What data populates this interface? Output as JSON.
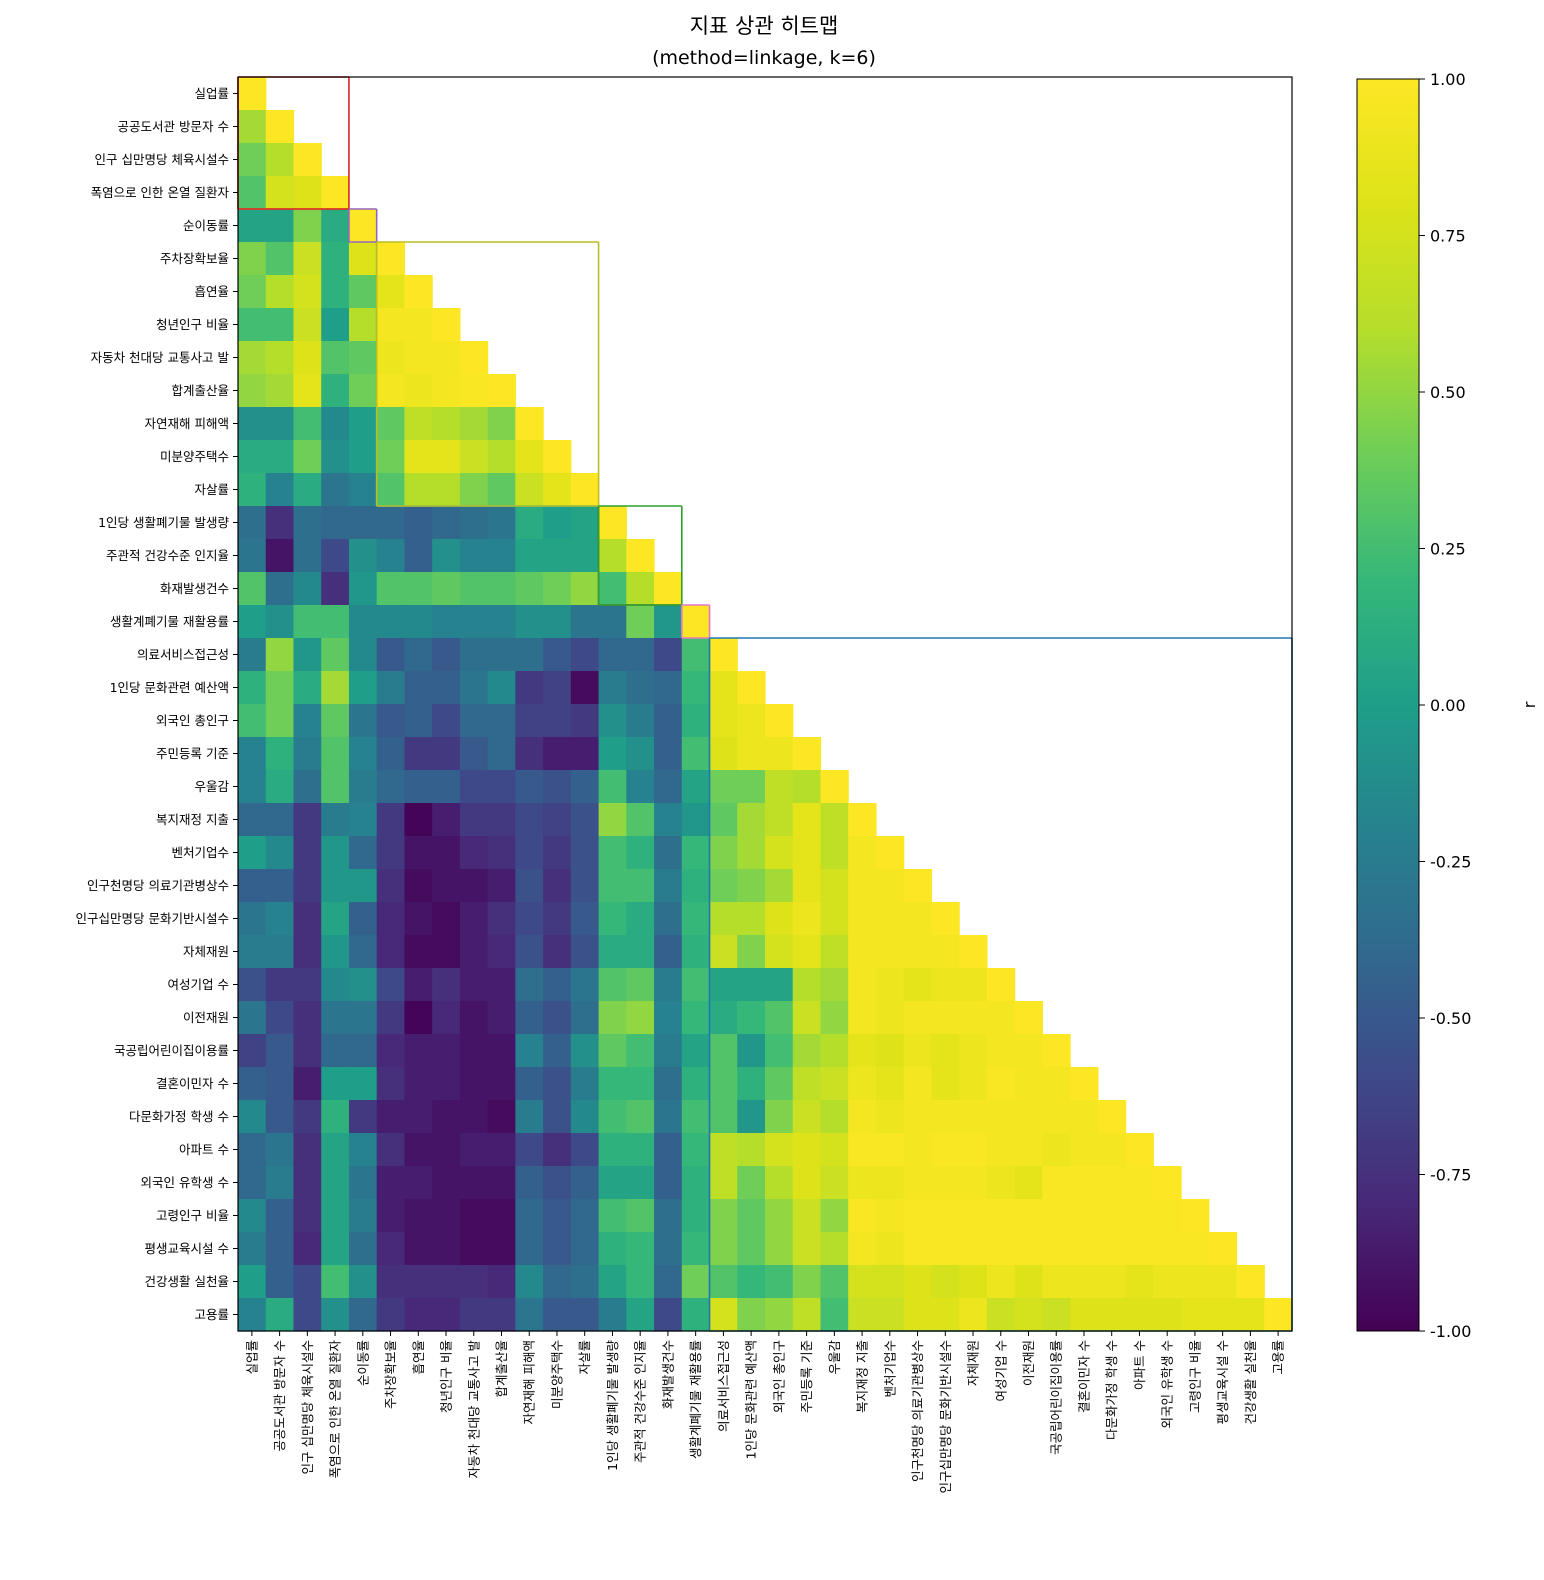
{
  "chart_data": {
    "type": "heatmap",
    "title": "지표 상관 히트맵",
    "subtitle": "(method=linkage, k=6)",
    "colormap": "viridis",
    "vmin": -1.0,
    "vmax": 1.0,
    "mask": "lower-triangle-with-diagonal",
    "labels": [
      "실업률",
      "공공도서관 방문자 수",
      "인구 십만명당 체육시설수",
      "폭염으로 인한 온열 질환자",
      "순이동률",
      "주차장확보율",
      "흡연율",
      "청년인구 비율",
      "자동차 천대당 교통사고 발",
      "합계출산율",
      "자연재해 피해액",
      "미분양주택수",
      "자살률",
      "1인당 생활폐기물 발생량",
      "주관적 건강수준 인지율",
      "화재발생건수",
      "생활계폐기물 재활용률",
      "의료서비스접근성",
      "1인당 문화관련 예산액",
      "외국인 총인구",
      "주민등록 기준",
      "우울감",
      "복지재정 지출",
      "벤처기업수",
      "인구천명당 의료기관병상수",
      "인구십만명당 문화기반시설수",
      "자체재원",
      "여성기업 수",
      "이전재원",
      "국공립어린이집이용률",
      "결혼이민자 수",
      "다문화가정 학생 수",
      "아파트 수",
      "외국인 유학생 수",
      "고령인구 비율",
      "평생교육시설 수",
      "건강생활 실천율",
      "고용률"
    ],
    "clusters": [
      {
        "start": 0,
        "end": 3,
        "color": "#d62728"
      },
      {
        "start": 4,
        "end": 4,
        "color": "#9467bd"
      },
      {
        "start": 5,
        "end": 12,
        "color": "#bcbd22"
      },
      {
        "start": 13,
        "end": 15,
        "color": "#2ca02c"
      },
      {
        "start": 16,
        "end": 16,
        "color": "#e377c2"
      },
      {
        "start": 17,
        "end": 37,
        "color": "#1f77b4"
      }
    ],
    "group_blocks": [
      {
        "start": 0,
        "end": 3,
        "color": "#ff7f0e"
      },
      {
        "start": 5,
        "end": 12,
        "color": "#17becf"
      },
      {
        "start": 13,
        "end": 15,
        "color": "#8c564b"
      }
    ],
    "values_rows": [
      [
        1.0
      ],
      [
        0.55,
        1.0
      ],
      [
        0.4,
        0.6,
        1.0
      ],
      [
        0.3,
        0.75,
        0.8,
        1.0
      ],
      [
        0.05,
        0.05,
        0.45,
        0.1,
        1.0
      ],
      [
        0.45,
        0.3,
        0.7,
        0.15,
        0.8,
        1.0
      ],
      [
        0.4,
        0.6,
        0.75,
        0.15,
        0.35,
        0.85,
        1.0
      ],
      [
        0.25,
        0.25,
        0.7,
        0.0,
        0.6,
        0.95,
        0.95,
        1.0
      ],
      [
        0.55,
        0.6,
        0.8,
        0.3,
        0.35,
        0.9,
        0.95,
        0.95,
        1.0
      ],
      [
        0.5,
        0.55,
        0.85,
        0.15,
        0.4,
        0.95,
        0.9,
        0.95,
        0.98,
        1.0
      ],
      [
        -0.1,
        -0.1,
        0.25,
        -0.15,
        0.0,
        0.35,
        0.65,
        0.6,
        0.55,
        0.45,
        1.0
      ],
      [
        0.1,
        0.1,
        0.4,
        -0.1,
        0.0,
        0.4,
        0.85,
        0.85,
        0.7,
        0.6,
        0.85,
        1.0
      ],
      [
        0.15,
        -0.2,
        0.1,
        -0.3,
        -0.2,
        0.3,
        0.6,
        0.6,
        0.45,
        0.35,
        0.7,
        0.85,
        1.0
      ],
      [
        -0.35,
        -0.75,
        -0.35,
        -0.4,
        -0.4,
        -0.4,
        -0.45,
        -0.4,
        -0.35,
        -0.3,
        0.1,
        0.0,
        0.05,
        1.0
      ],
      [
        -0.3,
        -0.9,
        -0.35,
        -0.6,
        -0.1,
        -0.2,
        -0.45,
        -0.1,
        -0.2,
        -0.2,
        0.05,
        0.05,
        0.05,
        0.6,
        1.0
      ],
      [
        0.3,
        -0.35,
        -0.15,
        -0.75,
        -0.05,
        0.3,
        0.3,
        0.35,
        0.3,
        0.3,
        0.35,
        0.4,
        0.5,
        0.25,
        0.6,
        1.0
      ],
      [
        0.0,
        -0.1,
        0.25,
        0.25,
        -0.15,
        -0.15,
        -0.15,
        -0.2,
        -0.2,
        -0.2,
        -0.1,
        -0.1,
        -0.3,
        -0.3,
        0.4,
        -0.05,
        1.0
      ],
      [
        -0.25,
        0.5,
        -0.05,
        0.35,
        -0.15,
        -0.5,
        -0.4,
        -0.5,
        -0.35,
        -0.35,
        -0.35,
        -0.5,
        -0.6,
        -0.4,
        -0.4,
        -0.6,
        0.25,
        1.0
      ],
      [
        0.15,
        0.4,
        0.1,
        0.55,
        0.0,
        -0.25,
        -0.45,
        -0.45,
        -0.3,
        -0.15,
        -0.7,
        -0.65,
        -0.95,
        -0.25,
        -0.35,
        -0.4,
        0.2,
        0.85,
        1.0
      ],
      [
        0.25,
        0.4,
        -0.2,
        0.35,
        -0.3,
        -0.5,
        -0.45,
        -0.6,
        -0.4,
        -0.4,
        -0.65,
        -0.65,
        -0.7,
        -0.1,
        -0.25,
        -0.45,
        0.15,
        0.85,
        0.9,
        1.0
      ],
      [
        -0.2,
        0.15,
        -0.25,
        0.3,
        -0.2,
        -0.45,
        -0.7,
        -0.7,
        -0.5,
        -0.4,
        -0.75,
        -0.85,
        -0.85,
        -0.0,
        -0.1,
        -0.45,
        0.25,
        0.8,
        0.9,
        0.9,
        1.0
      ],
      [
        -0.2,
        0.1,
        -0.35,
        0.3,
        -0.25,
        -0.4,
        -0.45,
        -0.45,
        -0.6,
        -0.6,
        -0.5,
        -0.55,
        -0.45,
        0.25,
        -0.2,
        -0.4,
        0.05,
        0.4,
        0.4,
        0.65,
        0.6,
        1.0
      ],
      [
        -0.4,
        -0.4,
        -0.7,
        -0.25,
        -0.2,
        -0.7,
        -0.98,
        -0.85,
        -0.7,
        -0.7,
        -0.6,
        -0.65,
        -0.55,
        0.5,
        0.3,
        -0.2,
        -0.05,
        0.35,
        0.55,
        0.65,
        0.85,
        0.65,
        1.0
      ],
      [
        0.0,
        -0.15,
        -0.7,
        -0.05,
        -0.4,
        -0.7,
        -0.9,
        -0.9,
        -0.8,
        -0.75,
        -0.6,
        -0.7,
        -0.55,
        0.25,
        0.15,
        -0.35,
        0.2,
        0.45,
        0.55,
        0.75,
        0.85,
        0.65,
        0.95,
        1.0
      ],
      [
        -0.45,
        -0.45,
        -0.7,
        -0.05,
        -0.05,
        -0.75,
        -0.95,
        -0.9,
        -0.9,
        -0.85,
        -0.55,
        -0.75,
        -0.55,
        0.25,
        0.25,
        -0.25,
        0.15,
        0.4,
        0.45,
        0.55,
        0.85,
        0.75,
        0.95,
        0.95,
        1.0
      ],
      [
        -0.3,
        -0.2,
        -0.75,
        0.05,
        -0.45,
        -0.8,
        -0.9,
        -0.95,
        -0.85,
        -0.75,
        -0.6,
        -0.7,
        -0.5,
        0.2,
        0.1,
        -0.35,
        0.2,
        0.6,
        0.6,
        0.8,
        0.9,
        0.75,
        0.95,
        0.95,
        0.95,
        1.0
      ],
      [
        -0.25,
        -0.25,
        -0.75,
        -0.05,
        -0.4,
        -0.8,
        -0.95,
        -0.95,
        -0.85,
        -0.8,
        -0.55,
        -0.75,
        -0.55,
        0.1,
        0.1,
        -0.45,
        0.15,
        0.7,
        0.45,
        0.75,
        0.85,
        0.65,
        0.95,
        0.95,
        0.95,
        0.95,
        1.0
      ],
      [
        -0.55,
        -0.7,
        -0.7,
        -0.15,
        -0.1,
        -0.6,
        -0.85,
        -0.75,
        -0.85,
        -0.85,
        -0.35,
        -0.45,
        -0.3,
        0.3,
        0.35,
        -0.25,
        0.25,
        0.05,
        0.05,
        0.05,
        0.6,
        0.55,
        0.95,
        0.9,
        0.85,
        0.9,
        0.9,
        1.0
      ],
      [
        -0.3,
        -0.6,
        -0.75,
        -0.3,
        -0.3,
        -0.7,
        -0.98,
        -0.8,
        -0.9,
        -0.85,
        -0.45,
        -0.55,
        -0.35,
        0.45,
        0.5,
        -0.2,
        0.2,
        0.1,
        0.2,
        0.3,
        0.7,
        0.5,
        0.95,
        0.9,
        0.95,
        0.95,
        0.95,
        0.95,
        1.0
      ],
      [
        -0.65,
        -0.5,
        -0.75,
        -0.4,
        -0.4,
        -0.8,
        -0.85,
        -0.85,
        -0.9,
        -0.9,
        -0.2,
        -0.45,
        -0.1,
        0.35,
        0.25,
        -0.25,
        0.05,
        0.3,
        -0.05,
        0.25,
        0.55,
        0.6,
        0.85,
        0.8,
        0.9,
        0.85,
        0.9,
        0.95,
        0.95,
        1.0
      ],
      [
        -0.45,
        -0.5,
        -0.85,
        0.0,
        0.0,
        -0.75,
        -0.85,
        -0.85,
        -0.9,
        -0.9,
        -0.45,
        -0.55,
        -0.25,
        0.2,
        0.2,
        -0.35,
        0.15,
        0.3,
        0.15,
        0.35,
        0.65,
        0.7,
        0.9,
        0.85,
        0.95,
        0.85,
        0.9,
        0.98,
        0.95,
        0.95,
        1.0
      ],
      [
        -0.15,
        -0.5,
        -0.7,
        0.15,
        -0.7,
        -0.85,
        -0.85,
        -0.9,
        -0.9,
        -0.95,
        -0.25,
        -0.55,
        -0.15,
        0.25,
        0.3,
        -0.3,
        0.25,
        0.3,
        -0.05,
        0.45,
        0.7,
        0.6,
        0.95,
        0.9,
        0.95,
        0.95,
        0.95,
        0.95,
        0.95,
        0.95,
        0.95,
        1.0
      ],
      [
        -0.4,
        -0.3,
        -0.75,
        0.05,
        -0.2,
        -0.75,
        -0.9,
        -0.9,
        -0.85,
        -0.85,
        -0.6,
        -0.75,
        -0.6,
        0.15,
        0.15,
        -0.45,
        0.2,
        0.65,
        0.6,
        0.75,
        0.8,
        0.75,
        0.98,
        0.98,
        0.95,
        0.98,
        0.98,
        0.95,
        0.95,
        0.9,
        0.95,
        0.95,
        1.0
      ],
      [
        -0.4,
        -0.25,
        -0.75,
        0.05,
        -0.3,
        -0.85,
        -0.85,
        -0.9,
        -0.9,
        -0.9,
        -0.45,
        -0.55,
        -0.45,
        0.05,
        0.05,
        -0.45,
        0.15,
        0.65,
        0.4,
        0.6,
        0.8,
        0.7,
        0.9,
        0.9,
        0.95,
        0.95,
        0.95,
        0.9,
        0.85,
        0.98,
        0.98,
        0.98,
        0.98,
        1.0
      ],
      [
        -0.15,
        -0.45,
        -0.75,
        0.05,
        -0.25,
        -0.85,
        -0.9,
        -0.9,
        -0.95,
        -0.95,
        -0.4,
        -0.5,
        -0.4,
        0.25,
        0.3,
        -0.35,
        0.15,
        0.45,
        0.35,
        0.5,
        0.7,
        0.5,
        0.98,
        0.95,
        0.98,
        0.98,
        0.98,
        0.98,
        0.98,
        0.98,
        0.98,
        0.98,
        0.98,
        0.98,
        1.0
      ],
      [
        -0.25,
        -0.45,
        -0.8,
        0.05,
        -0.35,
        -0.8,
        -0.9,
        -0.9,
        -0.95,
        -0.95,
        -0.4,
        -0.5,
        -0.4,
        0.15,
        0.2,
        -0.35,
        0.2,
        0.45,
        0.35,
        0.5,
        0.7,
        0.6,
        0.95,
        0.9,
        0.98,
        0.98,
        0.98,
        0.98,
        0.98,
        0.98,
        0.98,
        0.98,
        0.98,
        0.98,
        0.98,
        1.0
      ],
      [
        0.0,
        -0.45,
        -0.6,
        0.25,
        -0.1,
        -0.75,
        -0.75,
        -0.75,
        -0.75,
        -0.8,
        -0.15,
        -0.4,
        -0.35,
        0.05,
        0.2,
        -0.4,
        0.4,
        0.3,
        0.2,
        0.25,
        0.45,
        0.3,
        0.75,
        0.75,
        0.8,
        0.75,
        0.8,
        0.9,
        0.8,
        0.9,
        0.9,
        0.9,
        0.85,
        0.9,
        0.9,
        0.9,
        1.0
      ],
      [
        -0.2,
        0.1,
        -0.6,
        -0.1,
        -0.4,
        -0.7,
        -0.8,
        -0.8,
        -0.7,
        -0.7,
        -0.3,
        -0.5,
        -0.5,
        -0.25,
        0.05,
        -0.6,
        0.15,
        0.75,
        0.45,
        0.5,
        0.65,
        0.25,
        0.7,
        0.7,
        0.8,
        0.8,
        0.9,
        0.7,
        0.75,
        0.7,
        0.8,
        0.8,
        0.8,
        0.8,
        0.85,
        0.85,
        0.85,
        1.0
      ]
    ],
    "colorbar": {
      "label": "r",
      "ticks": [
        "1.00",
        "0.75",
        "0.50",
        "0.25",
        "0.00",
        "-0.25",
        "-0.50",
        "-0.75",
        "-1.00"
      ]
    }
  }
}
